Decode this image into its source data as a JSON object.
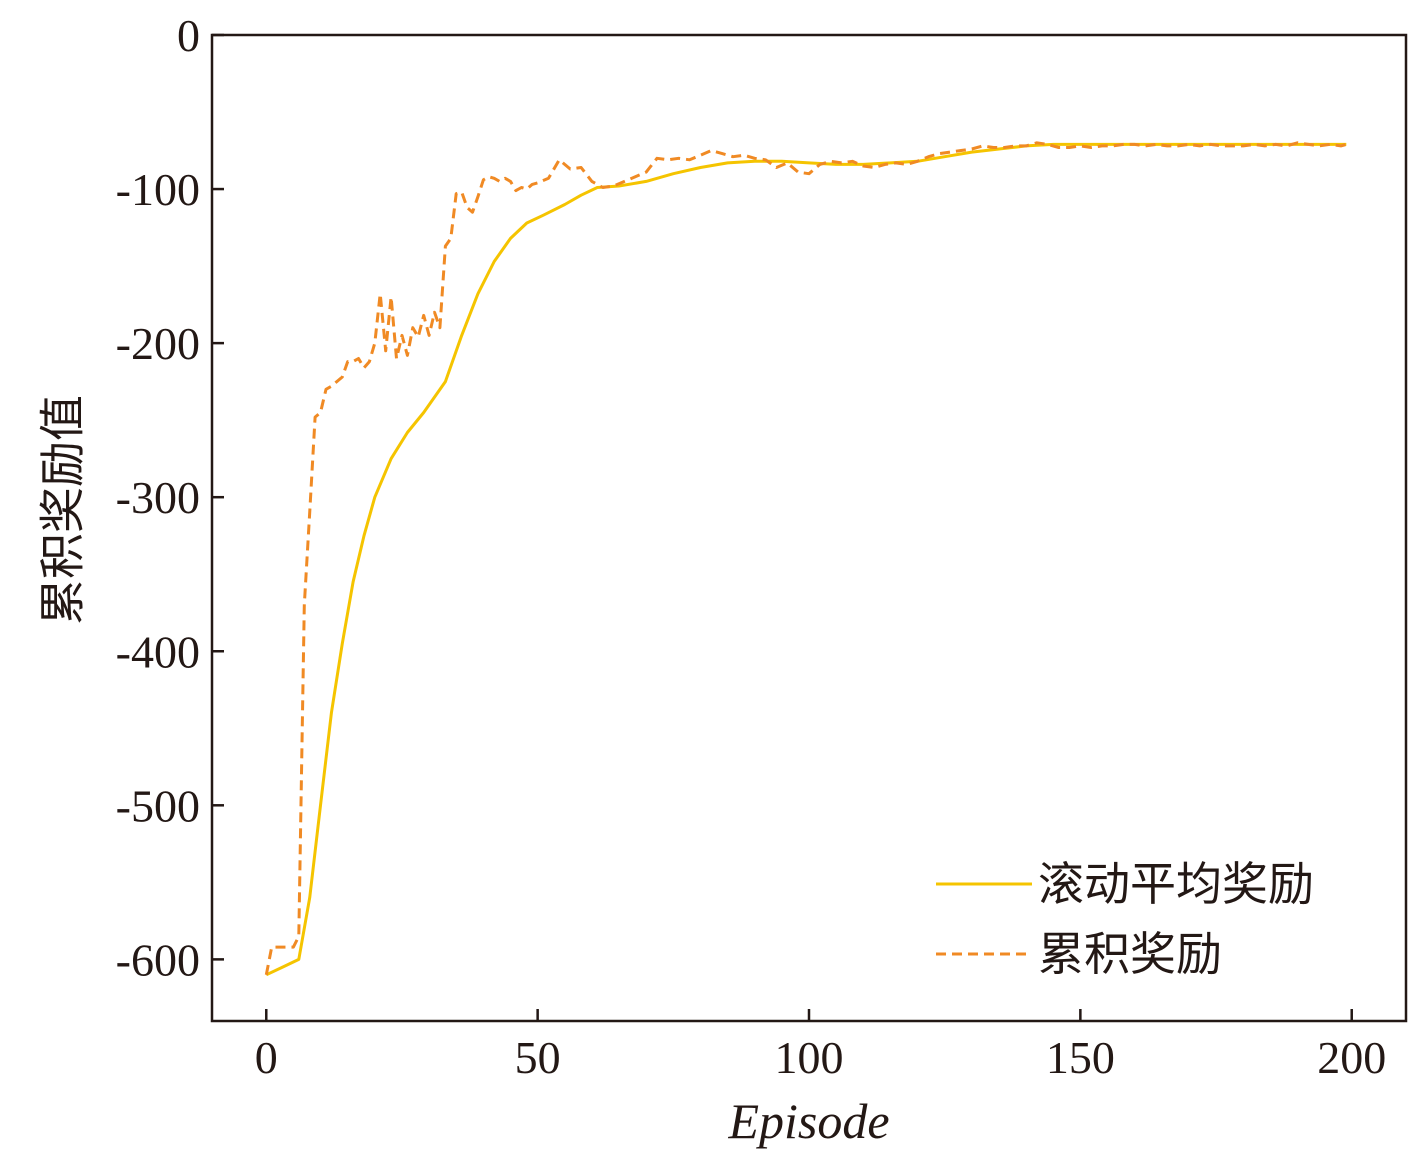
{
  "chart_data": {
    "type": "line",
    "title": "",
    "xlabel": "Episode",
    "ylabel": "累积奖励值",
    "xlim": [
      -10,
      210
    ],
    "ylim": [
      -640,
      0
    ],
    "x_ticks": [
      0,
      50,
      100,
      150,
      200
    ],
    "x_tick_labels": [
      "0",
      "50",
      "100",
      "150",
      "200"
    ],
    "y_ticks": [
      0,
      -100,
      -200,
      -300,
      -400,
      -500,
      -600
    ],
    "y_tick_labels": [
      "0",
      "-100",
      "-200",
      "-300",
      "-400",
      "-500",
      "-600"
    ],
    "grid": false,
    "legend_position": "bottom-right",
    "series": [
      {
        "name": "滚动平均奖励",
        "color": "#f5c400",
        "style": "solid",
        "x": [
          0,
          3,
          6,
          8,
          10,
          12,
          14,
          16,
          18,
          20,
          23,
          26,
          29,
          33,
          36,
          39,
          42,
          45,
          48,
          51,
          55,
          58,
          61,
          65,
          70,
          75,
          80,
          85,
          90,
          95,
          100,
          105,
          110,
          115,
          120,
          125,
          130,
          135,
          140,
          145,
          150,
          160,
          170,
          180,
          190,
          199
        ],
        "y": [
          -610,
          -605,
          -600,
          -560,
          -500,
          -440,
          -395,
          -355,
          -325,
          -300,
          -275,
          -258,
          -245,
          -225,
          -195,
          -168,
          -147,
          -132,
          -122,
          -117,
          -110,
          -104,
          -99,
          -98,
          -95,
          -90,
          -86,
          -83,
          -82,
          -82,
          -83,
          -84,
          -84,
          -83,
          -82,
          -79,
          -76,
          -74,
          -72,
          -71,
          -71,
          -71,
          -71,
          -71,
          -71,
          -71
        ]
      },
      {
        "name": "累积奖励",
        "color": "#f08a24",
        "style": "dashed",
        "x": [
          0,
          1,
          2,
          3,
          4,
          5,
          6,
          7,
          8,
          9,
          10,
          11,
          12,
          13,
          14,
          15,
          16,
          17,
          18,
          19,
          20,
          21,
          22,
          23,
          24,
          25,
          26,
          27,
          28,
          29,
          30,
          31,
          32,
          33,
          34,
          35,
          36,
          37,
          38,
          39,
          40,
          41,
          42,
          43,
          44,
          45,
          46,
          47,
          48,
          49,
          50,
          52,
          54,
          56,
          58,
          60,
          62,
          64,
          66,
          68,
          70,
          72,
          74,
          76,
          78,
          80,
          82,
          84,
          86,
          88,
          90,
          92,
          94,
          96,
          98,
          100,
          102,
          104,
          106,
          108,
          110,
          112,
          114,
          116,
          118,
          120,
          122,
          124,
          126,
          128,
          130,
          132,
          134,
          136,
          138,
          140,
          142,
          144,
          146,
          148,
          150,
          152,
          154,
          156,
          158,
          160,
          162,
          164,
          166,
          168,
          170,
          172,
          174,
          176,
          178,
          180,
          182,
          184,
          186,
          188,
          190,
          192,
          194,
          196,
          198,
          199
        ],
        "y": [
          -610,
          -592,
          -592,
          -592,
          -592,
          -592,
          -585,
          -370,
          -310,
          -248,
          -245,
          -230,
          -228,
          -225,
          -222,
          -212,
          -212,
          -210,
          -216,
          -212,
          -200,
          -168,
          -205,
          -170,
          -210,
          -195,
          -208,
          -190,
          -196,
          -182,
          -195,
          -180,
          -190,
          -137,
          -132,
          -103,
          -102,
          -112,
          -115,
          -105,
          -94,
          -92,
          -93,
          -95,
          -93,
          -95,
          -101,
          -99,
          -100,
          -97,
          -96,
          -93,
          -81,
          -87,
          -86,
          -95,
          -99,
          -98,
          -95,
          -92,
          -89,
          -80,
          -81,
          -80,
          -81,
          -78,
          -75,
          -77,
          -79,
          -78,
          -80,
          -81,
          -86,
          -83,
          -89,
          -90,
          -84,
          -82,
          -83,
          -82,
          -85,
          -86,
          -84,
          -83,
          -84,
          -82,
          -79,
          -77,
          -76,
          -75,
          -74,
          -72,
          -73,
          -73,
          -72,
          -72,
          -70,
          -71,
          -73,
          -73,
          -72,
          -73,
          -72,
          -72,
          -71,
          -71,
          -72,
          -71,
          -72,
          -72,
          -71,
          -72,
          -71,
          -72,
          -72,
          -72,
          -71,
          -72,
          -71,
          -72,
          -70,
          -71,
          -72,
          -71,
          -72,
          -71
        ]
      }
    ]
  }
}
